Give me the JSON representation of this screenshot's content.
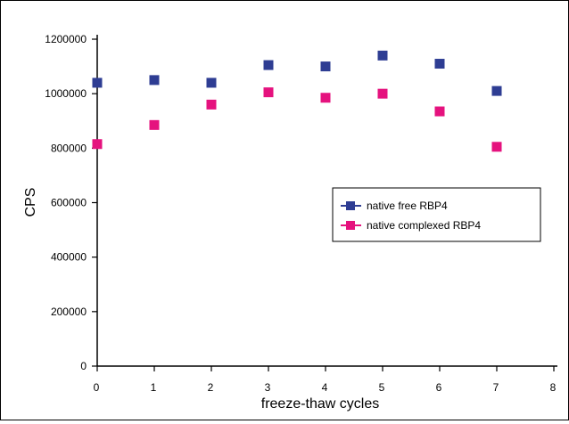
{
  "chart_data": {
    "type": "scatter",
    "title": "",
    "xlabel": "freeze-thaw cycles",
    "ylabel": "CPS",
    "xlim": [
      0,
      8
    ],
    "ylim": [
      0,
      1200000
    ],
    "x_ticks": [
      "0",
      "1",
      "2",
      "3",
      "4",
      "5",
      "6",
      "7",
      "8"
    ],
    "y_ticks": [
      "0",
      "200000",
      "400000",
      "600000",
      "800000",
      "1000000",
      "1200000"
    ],
    "grid": false,
    "legend_position": "right",
    "series": [
      {
        "name": "native free RBP4",
        "color": "#2e3d93",
        "x": [
          0,
          1,
          2,
          3,
          4,
          5,
          6,
          7
        ],
        "values": [
          1040000,
          1050000,
          1040000,
          1105000,
          1100000,
          1140000,
          1110000,
          1010000
        ]
      },
      {
        "name": "native complexed RBP4",
        "color": "#e5127e",
        "x": [
          0,
          1,
          2,
          3,
          4,
          5,
          6,
          7
        ],
        "values": [
          815000,
          885000,
          960000,
          1005000,
          985000,
          1000000,
          935000,
          805000
        ]
      }
    ]
  }
}
